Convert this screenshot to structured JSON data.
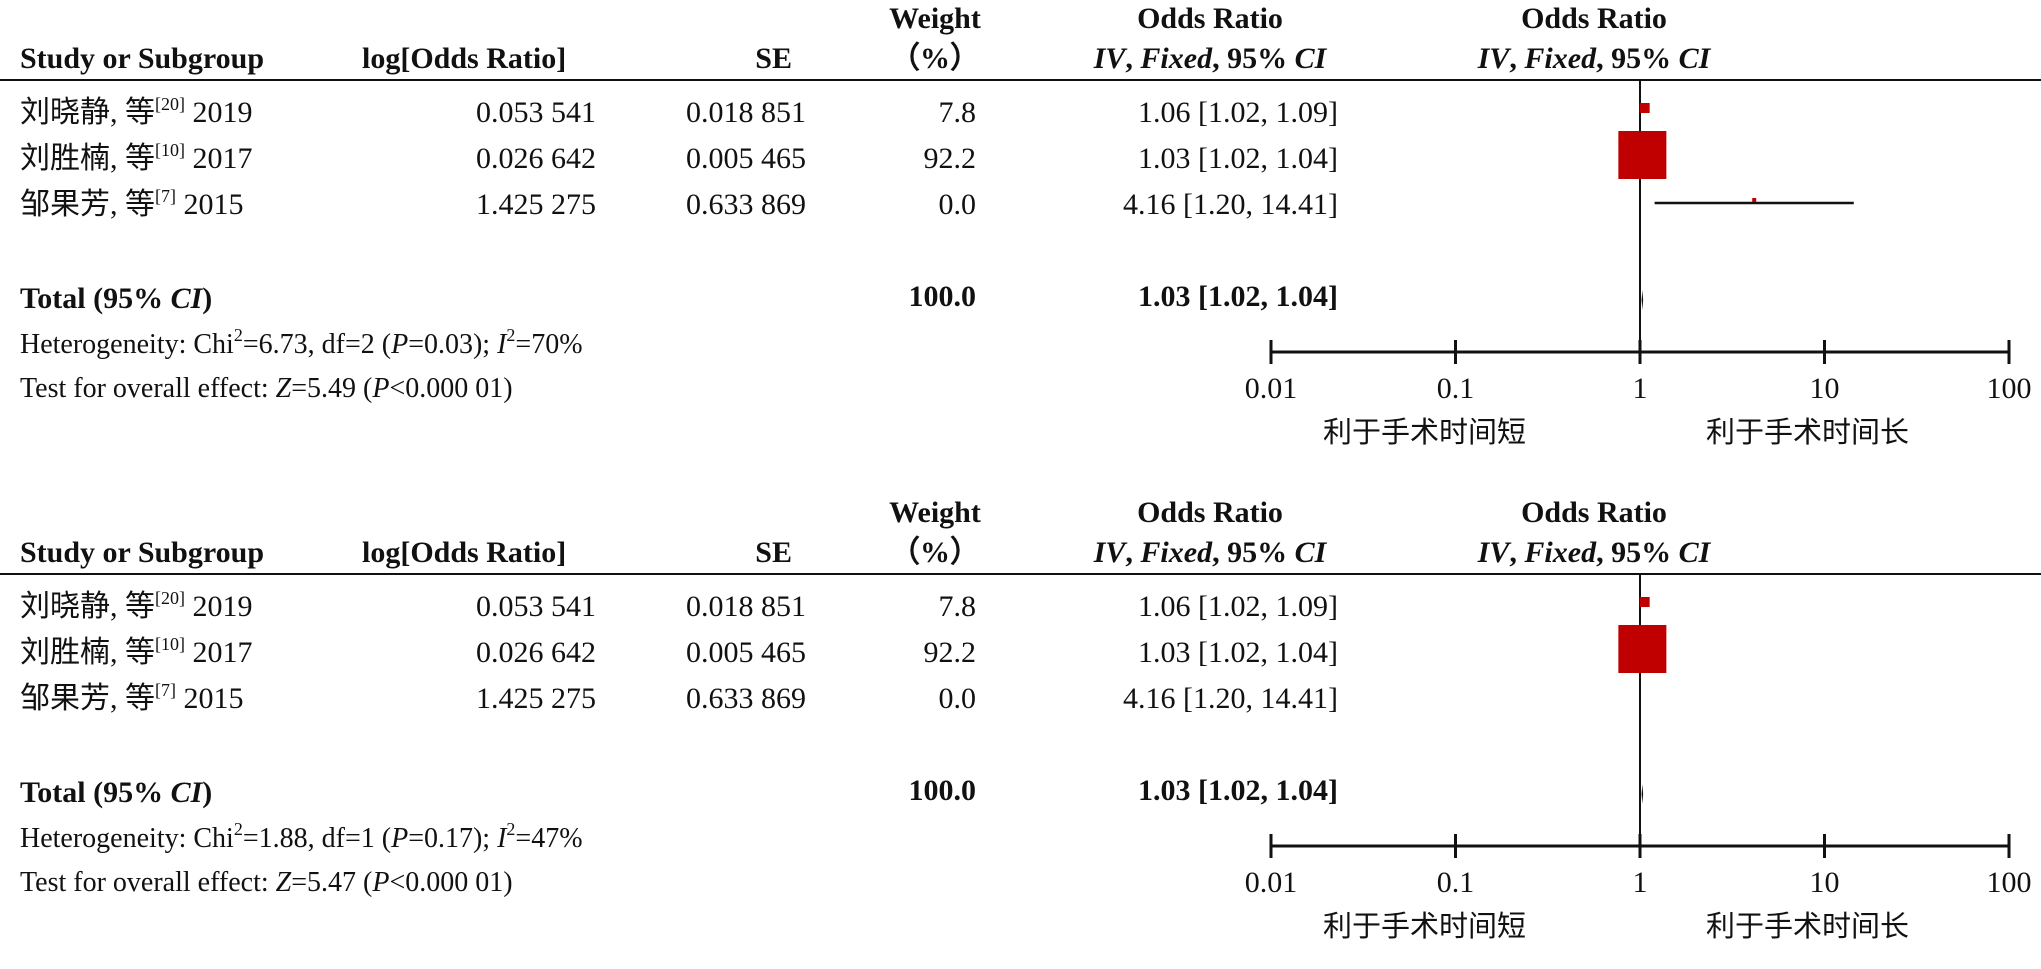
{
  "headers": {
    "study": "Study or Subgroup",
    "log_or": "log[Odds Ratio]",
    "se": "SE",
    "weight_line1": "Weight",
    "weight_line2": "（%）",
    "or_text_line1": "Odds Ratio",
    "or_text_line2_parts": [
      "IV",
      ", ",
      "Fixed",
      ", 95% ",
      "CI"
    ],
    "or_plot_line1": "Odds Ratio",
    "or_plot_line2_parts": [
      "IV",
      ", ",
      "Fixed",
      ", 95% ",
      "CI"
    ]
  },
  "axis_ticks": [
    "0.01",
    "0.1",
    "1",
    "10",
    "100"
  ],
  "favours_left": "利于手术时间短",
  "favours_right": "利于手术时间长",
  "colors": {
    "marker": "#c00000",
    "line": "#111111"
  },
  "chart_data": [
    {
      "type": "forest",
      "scale": "log",
      "xlim": [
        0.01,
        100
      ],
      "studies": [
        {
          "name": "刘晓静, 等",
          "ref": "[20]",
          "year": "2019",
          "log_or": "0.053 541",
          "se": "0.018 851",
          "weight": "7.8",
          "ci_text": "1.06 [1.02, 1.09]",
          "or": 1.06,
          "lo": 1.02,
          "hi": 1.09,
          "w": 7.8
        },
        {
          "name": "刘胜楠, 等",
          "ref": "[10]",
          "year": "2017",
          "log_or": "0.026 642",
          "se": "0.005 465",
          "weight": "92.2",
          "ci_text": "1.03 [1.02, 1.04]",
          "or": 1.03,
          "lo": 1.02,
          "hi": 1.04,
          "w": 92.2
        },
        {
          "name": "邹果芳, 等",
          "ref": "[7]",
          "year": "2015",
          "log_or": "1.425 275",
          "se": "0.633 869",
          "weight": "0.0",
          "ci_text": "4.16 [1.20, 14.41]",
          "or": 4.16,
          "lo": 1.2,
          "hi": 14.41,
          "w": 0.0
        }
      ],
      "total": {
        "label_parts": [
          "Total (95% ",
          "CI",
          ")"
        ],
        "weight": "100.0",
        "ci_text": "1.03 [1.02, 1.04]",
        "or": 1.03,
        "lo": 1.02,
        "hi": 1.04
      },
      "heterogeneity": {
        "chi2": "6.73",
        "df": "2",
        "p": "0.03",
        "i2": "70"
      },
      "overall": {
        "z": "5.49",
        "p": "<0.000 01"
      }
    },
    {
      "type": "forest",
      "scale": "log",
      "xlim": [
        0.01,
        100
      ],
      "studies": [
        {
          "name": "刘晓静, 等",
          "ref": "[20]",
          "year": "2019",
          "log_or": "0.053 541",
          "se": "0.018 851",
          "weight": "7.8",
          "ci_text": "1.06 [1.02, 1.09]",
          "or": 1.06,
          "lo": 1.02,
          "hi": 1.09,
          "w": 7.8
        },
        {
          "name": "刘胜楠, 等",
          "ref": "[10]",
          "year": "2017",
          "log_or": "0.026 642",
          "se": "0.005 465",
          "weight": "92.2",
          "ci_text": "1.03 [1.02, 1.04]",
          "or": 1.03,
          "lo": 1.02,
          "hi": 1.04,
          "w": 92.2
        },
        {
          "name": "邹果芳, 等",
          "ref": "[7]",
          "year": "2015",
          "log_or": "1.425 275",
          "se": "0.633 869",
          "weight": "0.0",
          "ci_text": "4.16 [1.20, 14.41]",
          "or": null,
          "lo": null,
          "hi": null,
          "w": 0.0
        }
      ],
      "total": {
        "label_parts": [
          "Total (95% ",
          "CI",
          ")"
        ],
        "weight": "100.0",
        "ci_text": "1.03 [1.02, 1.04]",
        "or": 1.03,
        "lo": 1.02,
        "hi": 1.04
      },
      "heterogeneity": {
        "chi2": "1.88",
        "df": "1",
        "p": "0.17",
        "i2": "47"
      },
      "overall": {
        "z": "5.47",
        "p": "<0.000 01"
      }
    }
  ]
}
